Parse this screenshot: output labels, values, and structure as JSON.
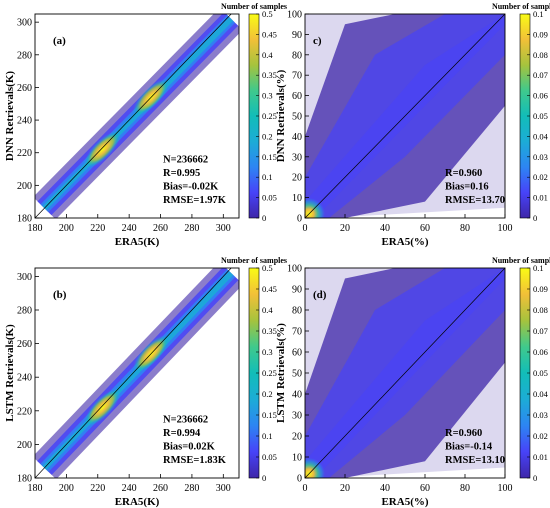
{
  "colormap": [
    "#3e26a8",
    "#4743f8",
    "#2d85f3",
    "#1cacd6",
    "#12bdb8",
    "#40c98c",
    "#a6c33d",
    "#f2c038",
    "#f9fb15"
  ],
  "chart_data": [
    {
      "id": "a",
      "type": "heatmap",
      "panel_label": "(a)",
      "xlabel": "ERA5(K)",
      "ylabel": "DNN Retrievals(K)",
      "xlim": [
        180,
        310
      ],
      "ylim": [
        180,
        305
      ],
      "xticks": [
        "180",
        "200",
        "220",
        "240",
        "260",
        "280",
        "300"
      ],
      "yticks": [
        "180",
        "200",
        "220",
        "240",
        "260",
        "280",
        "300"
      ],
      "colorbar": {
        "title": "Number of samples",
        "range": [
          0,
          0.5
        ],
        "ticks": [
          "0",
          "0.05",
          "0.1",
          "0.15",
          "0.2",
          "0.25",
          "0.3",
          "0.35",
          "0.4",
          "0.45",
          "0.5"
        ]
      },
      "stats": [
        "N=236662",
        "R=0.995",
        "Bias=-0.02K",
        "RMSE=1.97K"
      ],
      "one_to_one_line": true,
      "hotspots": [
        [
          223,
          222
        ],
        [
          254,
          254
        ]
      ]
    },
    {
      "id": "c",
      "type": "heatmap",
      "panel_label": "c)",
      "xlabel": "ERA5(%)",
      "ylabel": "DNN Retrievals(%)",
      "xlim": [
        0,
        100
      ],
      "ylim": [
        0,
        100
      ],
      "xticks": [
        "0",
        "20",
        "40",
        "60",
        "80",
        "100"
      ],
      "yticks": [
        "0",
        "10",
        "20",
        "30",
        "40",
        "50",
        "60",
        "70",
        "80",
        "90",
        "100"
      ],
      "colorbar": {
        "title": "Number of samples",
        "range": [
          0,
          0.1
        ],
        "ticks": [
          "0",
          "0.01",
          "0.02",
          "0.03",
          "0.04",
          "0.05",
          "0.06",
          "0.07",
          "0.08",
          "0.09",
          "0.1"
        ]
      },
      "stats": [
        "R=0.960",
        "Bias=0.16",
        "RMSE=13.70"
      ],
      "one_to_one_line": true,
      "hotspots": [
        [
          2,
          2
        ]
      ]
    },
    {
      "id": "b",
      "type": "heatmap",
      "panel_label": "(b)",
      "xlabel": "ERA5(K)",
      "ylabel": "LSTM Retrievals(K)",
      "xlim": [
        180,
        310
      ],
      "ylim": [
        180,
        305
      ],
      "xticks": [
        "180",
        "200",
        "220",
        "240",
        "260",
        "280",
        "300"
      ],
      "yticks": [
        "180",
        "200",
        "220",
        "240",
        "260",
        "280",
        "300"
      ],
      "colorbar": {
        "title": "Number of samples",
        "range": [
          0,
          0.5
        ],
        "ticks": [
          "0",
          "0.05",
          "0.1",
          "0.15",
          "0.2",
          "0.25",
          "0.3",
          "0.35",
          "0.4",
          "0.45",
          "0.5"
        ]
      },
      "stats": [
        "N=236662",
        "R=0.994",
        "Bias=0.02K",
        "RMSE=1.83K"
      ],
      "one_to_one_line": true,
      "hotspots": [
        [
          223,
          222
        ],
        [
          254,
          254
        ]
      ]
    },
    {
      "id": "d",
      "type": "heatmap",
      "panel_label": "(d)",
      "xlabel": "ERA5(%)",
      "ylabel": "LSTM Retrievals(%)",
      "xlim": [
        0,
        100
      ],
      "ylim": [
        0,
        100
      ],
      "xticks": [
        "0",
        "20",
        "40",
        "60",
        "80",
        "100"
      ],
      "yticks": [
        "0",
        "10",
        "20",
        "30",
        "40",
        "50",
        "60",
        "70",
        "80",
        "90",
        "100"
      ],
      "colorbar": {
        "title": "Number of samples",
        "range": [
          0,
          0.1
        ],
        "ticks": [
          "0",
          "0.01",
          "0.02",
          "0.03",
          "0.04",
          "0.05",
          "0.06",
          "0.07",
          "0.08",
          "0.09",
          "0.1"
        ]
      },
      "stats": [
        "R=0.960",
        "Bias=-0.14",
        "RMSE=13.10"
      ],
      "one_to_one_line": true,
      "hotspots": [
        [
          2,
          2
        ]
      ]
    }
  ]
}
